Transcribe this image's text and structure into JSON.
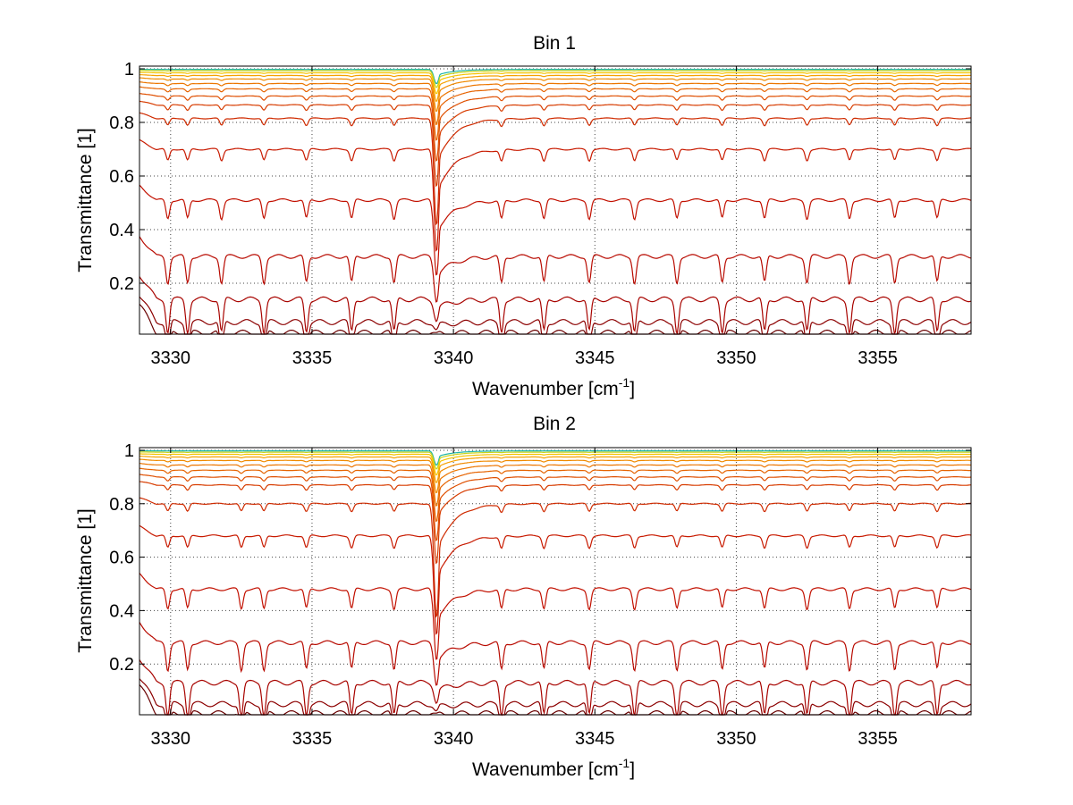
{
  "chart_data": [
    {
      "type": "line",
      "title": "Bin 1",
      "xlabel": "Wavenumber [cm",
      "xlabel_sup": "-1",
      "xlabel_end": "]",
      "ylabel": "Transmittance [1]",
      "xlim": [
        3328.9,
        3358.3
      ],
      "ylim": [
        0.01,
        1.01
      ],
      "xticks": [
        3330,
        3335,
        3340,
        3345,
        3350,
        3355
      ],
      "yticks": [
        0.2,
        0.4,
        0.6,
        0.8,
        1
      ],
      "grid": true,
      "gridstyle": "dotted",
      "strong_line": {
        "center": 3339.4,
        "width": 0.12,
        "tail": 1.8
      },
      "weak_lines": [
        3329.9,
        3330.6,
        3331.8,
        3333.3,
        3334.8,
        3336.4,
        3337.9,
        3341.7,
        3343.2,
        3344.8,
        3346.4,
        3347.9,
        3349.5,
        3351.0,
        3352.5,
        3354.0,
        3355.6,
        3357.1
      ],
      "series": [
        {
          "baseline": 0.998,
          "color": "#1fb5a8"
        },
        {
          "baseline": 0.993,
          "color": "#c8d41c"
        },
        {
          "baseline": 0.985,
          "color": "#f5c400"
        },
        {
          "baseline": 0.975,
          "color": "#f6a100"
        },
        {
          "baseline": 0.962,
          "color": "#f08a00"
        },
        {
          "baseline": 0.945,
          "color": "#ec7600"
        },
        {
          "baseline": 0.925,
          "color": "#e66300"
        },
        {
          "baseline": 0.898,
          "color": "#df4f00"
        },
        {
          "baseline": 0.865,
          "color": "#d73c00"
        },
        {
          "baseline": 0.815,
          "color": "#cf2b00"
        },
        {
          "baseline": 0.7,
          "color": "#c81a00"
        },
        {
          "baseline": 0.51,
          "color": "#c21000"
        },
        {
          "baseline": 0.3,
          "color": "#b80a00"
        },
        {
          "baseline": 0.14,
          "color": "#a80400"
        },
        {
          "baseline": 0.055,
          "color": "#8c0000"
        },
        {
          "baseline": 0.015,
          "color": "#6a0000"
        }
      ]
    },
    {
      "type": "line",
      "title": "Bin 2",
      "xlabel": "Wavenumber [cm",
      "xlabel_sup": "-1",
      "xlabel_end": "]",
      "ylabel": "Transmittance [1]",
      "xlim": [
        3328.9,
        3358.3
      ],
      "ylim": [
        0.01,
        1.01
      ],
      "xticks": [
        3330,
        3335,
        3340,
        3345,
        3350,
        3355
      ],
      "yticks": [
        0.2,
        0.4,
        0.6,
        0.8,
        1
      ],
      "grid": true,
      "gridstyle": "dotted",
      "strong_line": {
        "center": 3339.4,
        "width": 0.12,
        "tail": 1.8
      },
      "weak_lines": [
        3329.9,
        3330.6,
        3332.5,
        3333.3,
        3334.8,
        3336.4,
        3337.9,
        3341.7,
        3343.2,
        3344.8,
        3346.4,
        3347.9,
        3349.5,
        3351.0,
        3352.5,
        3354.0,
        3355.6,
        3357.1
      ],
      "series": [
        {
          "baseline": 0.998,
          "color": "#1fb5a8"
        },
        {
          "baseline": 0.993,
          "color": "#c8d41c"
        },
        {
          "baseline": 0.985,
          "color": "#f5c400"
        },
        {
          "baseline": 0.975,
          "color": "#f6a100"
        },
        {
          "baseline": 0.962,
          "color": "#f08a00"
        },
        {
          "baseline": 0.945,
          "color": "#ec7600"
        },
        {
          "baseline": 0.925,
          "color": "#e66300"
        },
        {
          "baseline": 0.9,
          "color": "#df4f00"
        },
        {
          "baseline": 0.87,
          "color": "#d73c00"
        },
        {
          "baseline": 0.8,
          "color": "#cf2b00"
        },
        {
          "baseline": 0.68,
          "color": "#c81a00"
        },
        {
          "baseline": 0.48,
          "color": "#c21000"
        },
        {
          "baseline": 0.28,
          "color": "#b80a00"
        },
        {
          "baseline": 0.13,
          "color": "#a80400"
        },
        {
          "baseline": 0.05,
          "color": "#8c0000"
        },
        {
          "baseline": 0.015,
          "color": "#6a0000"
        }
      ]
    }
  ]
}
